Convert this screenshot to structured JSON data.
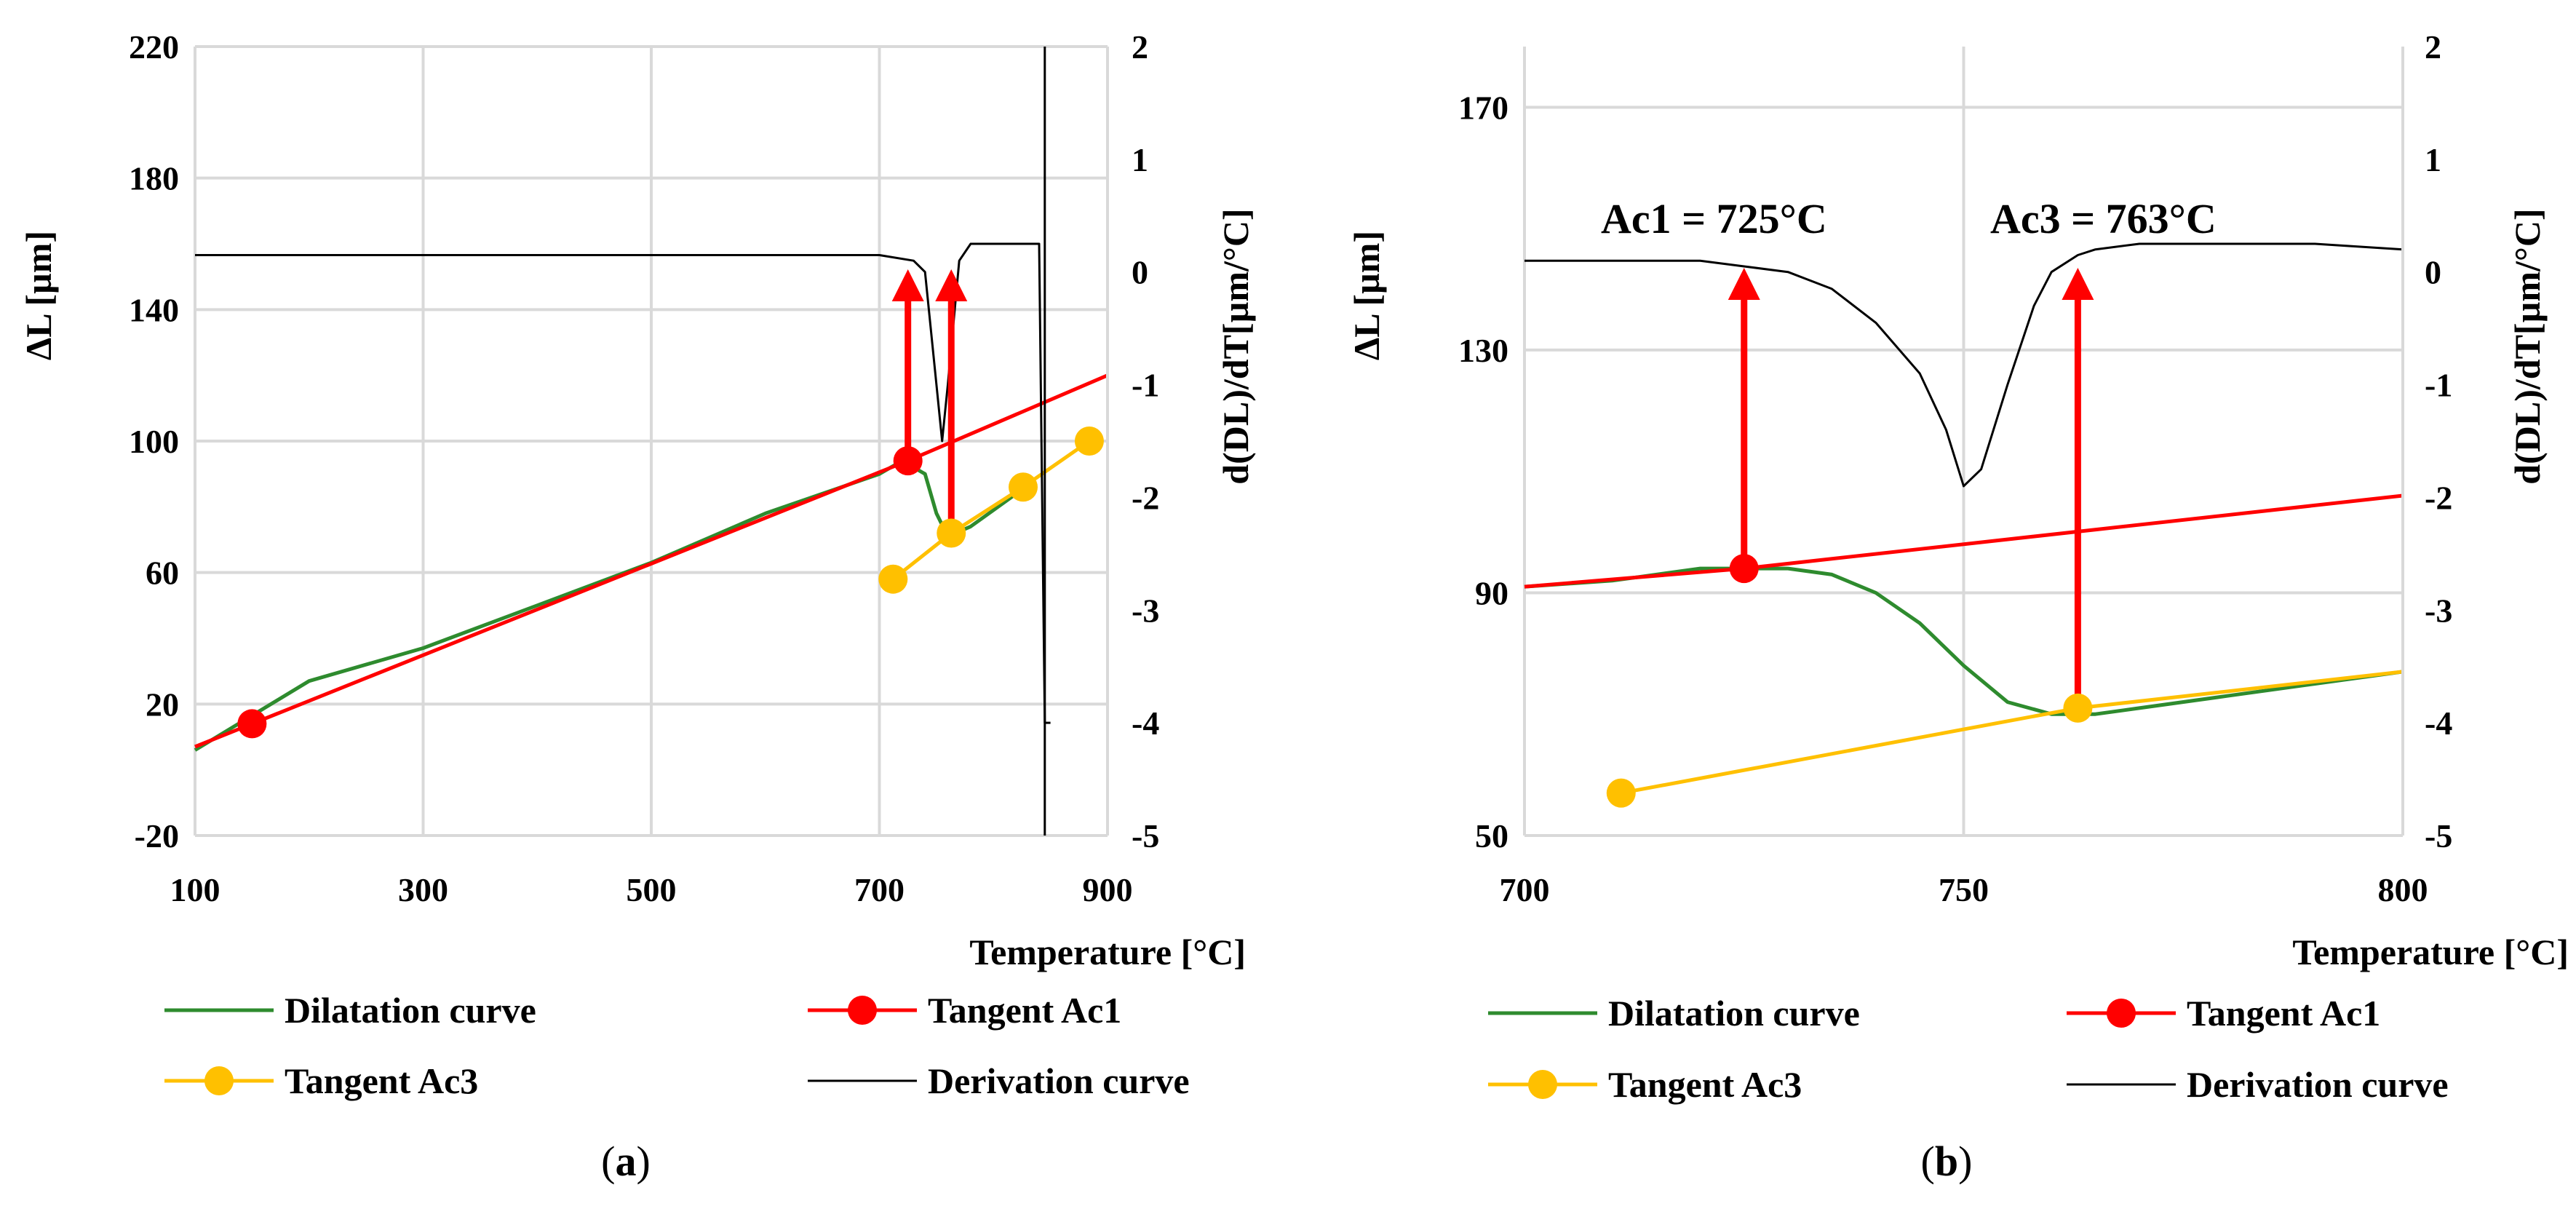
{
  "chart_data": [
    {
      "type": "line",
      "panel_label": "a",
      "xlabel": "Temperature [°C]",
      "ylabel": "ΔL [µm]",
      "y2label": "d(DL)/dT[µm/°C]",
      "xlim": [
        100,
        900
      ],
      "ylim": [
        -20,
        220
      ],
      "y2lim": [
        -5,
        2
      ],
      "x_ticks": [
        100,
        300,
        500,
        700,
        900
      ],
      "y_ticks": [
        -20,
        20,
        60,
        100,
        140,
        180,
        220
      ],
      "y2_ticks": [
        -5,
        -4,
        -3,
        -2,
        -1,
        0,
        1,
        2
      ],
      "grid": true,
      "legend_position": "bottom",
      "series": [
        {
          "name": "Dilatation curve",
          "color": "#2e8b2e",
          "axis": "left",
          "x": [
            100,
            200,
            300,
            400,
            500,
            600,
            700,
            720,
            740,
            750,
            760,
            780,
            800,
            820
          ],
          "y": [
            6,
            27,
            37,
            50,
            63,
            78,
            90,
            94,
            90,
            78,
            71,
            74,
            79,
            84
          ]
        },
        {
          "name": "Tangent Ac1",
          "color": "#ff0000",
          "axis": "left",
          "markers": true,
          "x": [
            100,
            150,
            725,
            900
          ],
          "y": [
            7,
            14,
            94,
            120
          ],
          "marker_x": [
            150,
            725
          ],
          "marker_y": [
            14,
            94
          ]
        },
        {
          "name": "Tangent Ac3",
          "color": "#ffc000",
          "axis": "left",
          "markers": true,
          "x": [
            712,
            763,
            826,
            884
          ],
          "y": [
            58,
            72,
            86,
            100
          ]
        },
        {
          "name": "Derivation curve",
          "color": "#000000",
          "axis": "right",
          "x": [
            100,
            300,
            500,
            700,
            730,
            740,
            750,
            755,
            760,
            770,
            780,
            800,
            840,
            845,
            850
          ],
          "y": [
            0.15,
            0.15,
            0.15,
            0.15,
            0.1,
            0.0,
            -1.0,
            -1.5,
            -1.0,
            0.1,
            0.25,
            0.25,
            0.25,
            -4.0,
            -4.0
          ]
        }
      ],
      "arrows": [
        {
          "x": 725,
          "from": 94,
          "to": 150
        },
        {
          "x": 763,
          "from": 72,
          "to": 150
        }
      ]
    },
    {
      "type": "line",
      "panel_label": "b",
      "xlabel": "Temperature [°C]",
      "ylabel": "ΔL [µm]",
      "y2label": "d(DL)/dT[µm/°C]",
      "xlim": [
        700,
        800
      ],
      "ylim": [
        50,
        180
      ],
      "y2lim": [
        -5,
        2
      ],
      "x_ticks": [
        700,
        750,
        800
      ],
      "y_ticks": [
        50,
        90,
        130,
        170
      ],
      "y2_ticks": [
        -5,
        -4,
        -3,
        -2,
        -1,
        0,
        1,
        2
      ],
      "grid": true,
      "legend_position": "bottom",
      "annotations": [
        "Ac1 = 725°C",
        "Ac3 = 763°C"
      ],
      "series": [
        {
          "name": "Dilatation curve",
          "color": "#2e8b2e",
          "axis": "left",
          "x": [
            700,
            710,
            720,
            730,
            735,
            740,
            745,
            750,
            755,
            760,
            765,
            770,
            780,
            790,
            800
          ],
          "y": [
            91,
            92,
            94,
            94,
            93,
            90,
            85,
            78,
            72,
            70,
            70,
            71,
            73,
            75,
            77
          ]
        },
        {
          "name": "Tangent Ac1",
          "color": "#ff0000",
          "axis": "left",
          "markers": true,
          "x": [
            700,
            725,
            800
          ],
          "y": [
            91,
            94,
            106
          ],
          "marker_x": [
            725
          ],
          "marker_y": [
            94
          ]
        },
        {
          "name": "Tangent Ac3",
          "color": "#ffc000",
          "axis": "left",
          "markers": true,
          "x": [
            711,
            763,
            800
          ],
          "y": [
            57,
            71,
            77
          ],
          "marker_x": [
            711,
            763
          ],
          "marker_y": [
            57,
            71
          ]
        },
        {
          "name": "Derivation curve",
          "color": "#000000",
          "axis": "right",
          "x": [
            700,
            710,
            720,
            725,
            730,
            735,
            740,
            745,
            748,
            750,
            752,
            755,
            758,
            760,
            763,
            765,
            770,
            780,
            790,
            800
          ],
          "y": [
            0.1,
            0.1,
            0.1,
            0.05,
            0.0,
            -0.15,
            -0.45,
            -0.9,
            -1.4,
            -1.9,
            -1.75,
            -1.0,
            -0.3,
            0.0,
            0.15,
            0.2,
            0.25,
            0.25,
            0.25,
            0.2
          ]
        }
      ],
      "arrows": [
        {
          "x": 725,
          "from": 94,
          "to": 150
        },
        {
          "x": 763,
          "from": 71,
          "to": 150
        }
      ]
    }
  ]
}
